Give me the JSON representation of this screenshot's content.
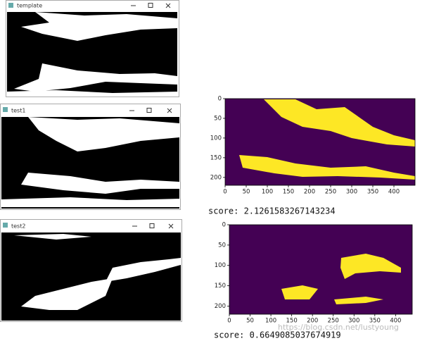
{
  "windows": [
    {
      "title": "template"
    },
    {
      "title": "test1"
    },
    {
      "title": "test2"
    }
  ],
  "plots": [
    {
      "xlim": [
        0,
        450
      ],
      "ylim": [
        0,
        220
      ],
      "xticks": [
        0,
        50,
        100,
        150,
        200,
        250,
        300,
        350,
        400
      ],
      "yticks": [
        0,
        50,
        100,
        150,
        200
      ],
      "score": "score: 2.1261583267143234"
    },
    {
      "xlim": [
        0,
        440
      ],
      "ylim": [
        0,
        220
      ],
      "xticks": [
        0,
        50,
        100,
        150,
        200,
        250,
        300,
        350,
        400
      ],
      "yticks": [
        0,
        50,
        100,
        150,
        200
      ],
      "score": "score: 0.6649085037674919"
    }
  ],
  "watermark": "https://blog.csdn.net/lustyoung"
}
